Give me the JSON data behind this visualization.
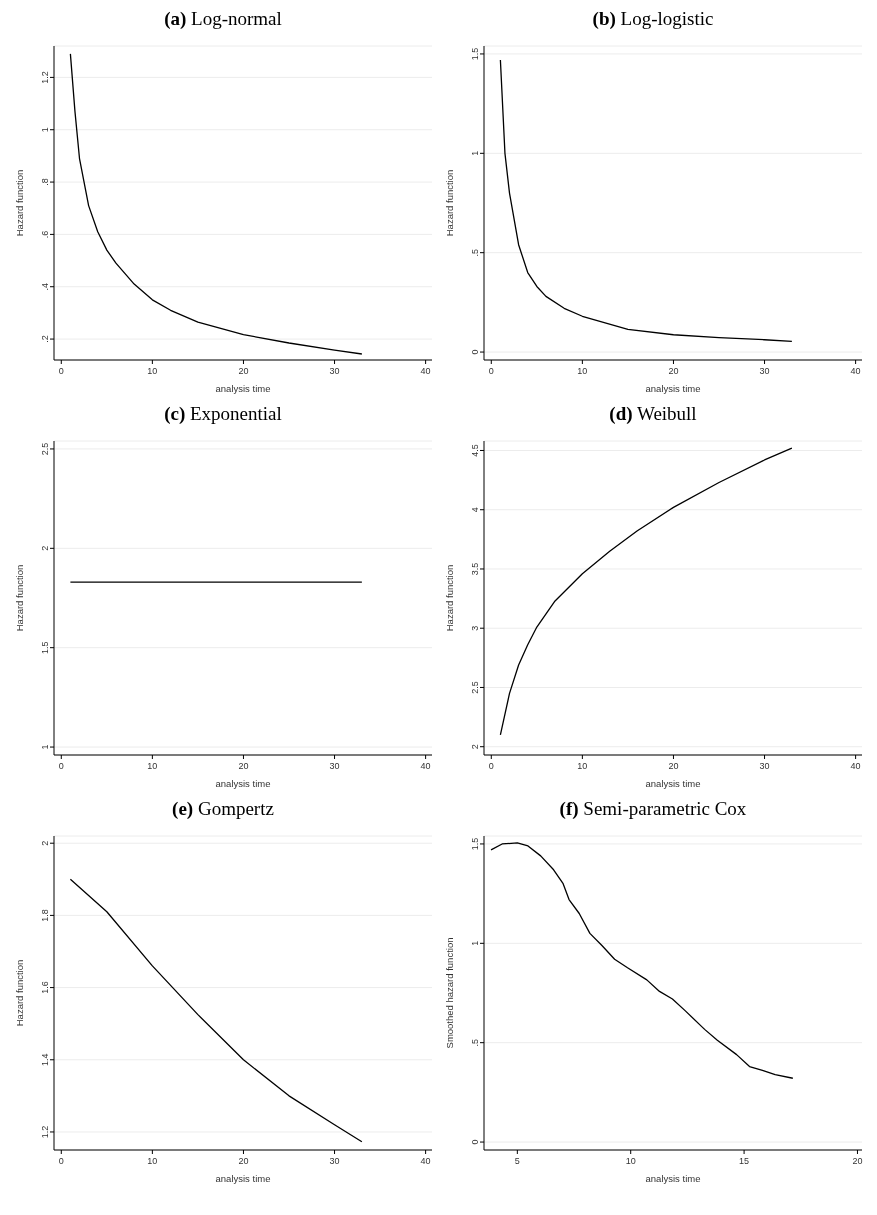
{
  "chart_data": [
    {
      "type": "line",
      "title": "(a) Log-normal",
      "xlabel": "analysis time",
      "ylabel": "Hazard function",
      "color": "#000000",
      "grid": "y",
      "x": [
        1,
        1.5,
        2,
        3,
        4,
        5,
        6,
        7,
        8,
        10,
        12,
        15,
        20,
        25,
        30,
        33
      ],
      "values": [
        1.29,
        1.07,
        0.89,
        0.71,
        0.61,
        0.54,
        0.49,
        0.45,
        0.41,
        0.35,
        0.31,
        0.265,
        0.217,
        0.185,
        0.158,
        0.143
      ],
      "xlim": [
        -0.8,
        40.7
      ],
      "ylim": [
        0.12,
        1.32
      ],
      "xticks": [
        0,
        10,
        20,
        30,
        40
      ],
      "yticks": [
        {
          "value": 0.2,
          "label": ".2"
        },
        {
          "value": 0.4,
          "label": ".4"
        },
        {
          "value": 0.6,
          "label": ".6"
        },
        {
          "value": 0.8,
          "label": ".8"
        },
        1,
        1.2
      ]
    },
    {
      "type": "line",
      "title": "(b) Log-logistic",
      "xlabel": "analysis time",
      "ylabel": "Hazard function",
      "color": "#000000",
      "grid": "y",
      "x": [
        1,
        1.5,
        2,
        3,
        4,
        5,
        6,
        8,
        10,
        15,
        20,
        25,
        30,
        33
      ],
      "values": [
        1.47,
        1.0,
        0.8,
        0.54,
        0.4,
        0.33,
        0.28,
        0.22,
        0.18,
        0.114,
        0.087,
        0.073,
        0.062,
        0.054
      ],
      "xlim": [
        -0.8,
        40.7
      ],
      "ylim": [
        -0.04,
        1.54
      ],
      "xticks": [
        0,
        10,
        20,
        30,
        40
      ],
      "yticks": [
        0,
        {
          "value": 0.5,
          "label": ".5"
        },
        1,
        1.5
      ]
    },
    {
      "type": "line",
      "title": "(c) Exponential",
      "xlabel": "analysis time",
      "ylabel": "Hazard function",
      "color": "#000000",
      "grid": "y",
      "x": [
        1,
        33
      ],
      "values": [
        1.83,
        1.83
      ],
      "xlim": [
        -0.8,
        40.7
      ],
      "ylim": [
        0.96,
        2.54
      ],
      "xticks": [
        0,
        10,
        20,
        30,
        40
      ],
      "yticks": [
        1,
        1.5,
        2,
        2.5
      ]
    },
    {
      "type": "line",
      "title": "(d) Weibull",
      "xlabel": "analysis time",
      "ylabel": "Hazard function",
      "color": "#000000",
      "grid": "y",
      "x": [
        1,
        2,
        3,
        4,
        5,
        7,
        10,
        13,
        16,
        20,
        25,
        30,
        33
      ],
      "values": [
        2.1,
        2.45,
        2.69,
        2.86,
        3.01,
        3.23,
        3.46,
        3.65,
        3.82,
        4.02,
        4.23,
        4.42,
        4.52
      ],
      "xlim": [
        -0.8,
        40.7
      ],
      "ylim": [
        1.93,
        4.58
      ],
      "xticks": [
        0,
        10,
        20,
        30,
        40
      ],
      "yticks": [
        2,
        2.5,
        3,
        3.5,
        4,
        4.5
      ]
    },
    {
      "type": "line",
      "title": "(e) Gompertz",
      "xlabel": "analysis time",
      "ylabel": "Hazard function",
      "color": "#000000",
      "grid": "y",
      "x": [
        1,
        5,
        10,
        15,
        20,
        25,
        30,
        33
      ],
      "values": [
        1.9,
        1.81,
        1.66,
        1.525,
        1.4,
        1.3,
        1.22,
        1.173
      ],
      "xlim": [
        -0.8,
        40.7
      ],
      "ylim": [
        1.15,
        2.02
      ],
      "xticks": [
        0,
        10,
        20,
        30,
        40
      ],
      "yticks": [
        1.2,
        1.4,
        1.6,
        1.8,
        2
      ]
    },
    {
      "type": "line",
      "title": "(f) Semi-parametric Cox",
      "xlabel": "analysis time",
      "ylabel": "Smoothed hazard function",
      "color": "#000000",
      "grid": "y",
      "x": [
        3.84,
        4.33,
        5.0,
        5.47,
        6.03,
        6.6,
        7.02,
        7.28,
        7.73,
        8.2,
        8.72,
        9.29,
        9.86,
        10.71,
        11.27,
        11.84,
        12.41,
        13.26,
        13.82,
        14.67,
        15.24,
        15.81,
        16.37,
        17.15
      ],
      "values": [
        1.47,
        1.5,
        1.505,
        1.49,
        1.44,
        1.37,
        1.3,
        1.22,
        1.15,
        1.05,
        0.99,
        0.92,
        0.877,
        0.816,
        0.758,
        0.72,
        0.66,
        0.567,
        0.512,
        0.44,
        0.38,
        0.361,
        0.339,
        0.321
      ],
      "xlim": [
        3.53,
        20.2
      ],
      "ylim": [
        -0.04,
        1.54
      ],
      "xticks": [
        5,
        10,
        15,
        20
      ],
      "yticks": [
        0,
        {
          "value": 0.5,
          "label": ".5"
        },
        1,
        1.5
      ]
    }
  ]
}
